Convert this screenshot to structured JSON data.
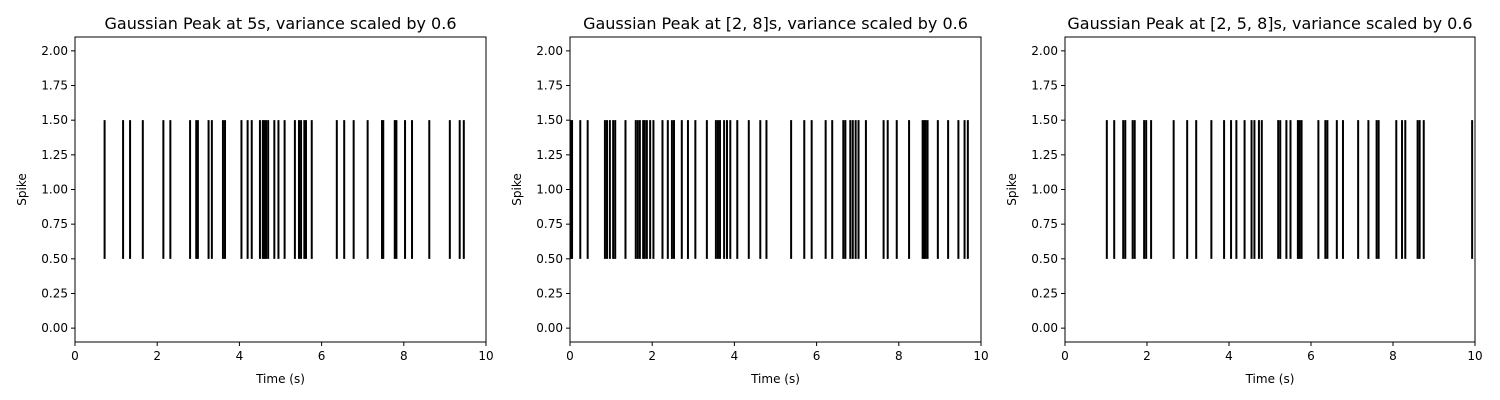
{
  "chart_data": [
    {
      "type": "eventplot",
      "title": "Gaussian Peak at 5s, variance scaled by 0.6",
      "xlabel": "Time (s)",
      "ylabel": "Spike",
      "xlim": [
        0,
        10
      ],
      "ylim": [
        -0.1,
        2.1
      ],
      "x_ticks": [
        "0",
        "2",
        "4",
        "6",
        "8",
        "10"
      ],
      "y_ticks": [
        "0.00",
        "0.25",
        "0.50",
        "0.75",
        "1.00",
        "1.25",
        "1.50",
        "1.75",
        "2.00"
      ],
      "line_range": [
        0.5,
        1.5
      ],
      "color": "#000000",
      "spike_times": [
        0.72,
        1.17,
        1.34,
        1.65,
        2.15,
        2.32,
        2.8,
        2.95,
        2.99,
        3.25,
        3.33,
        3.6,
        3.65,
        4.05,
        4.2,
        4.3,
        4.5,
        4.57,
        4.61,
        4.65,
        4.7,
        4.85,
        4.95,
        5.1,
        5.35,
        5.45,
        5.5,
        5.58,
        5.62,
        5.76,
        6.37,
        6.55,
        6.78,
        7.12,
        7.47,
        7.5,
        7.78,
        7.82,
        8.03,
        8.2,
        8.62,
        9.12,
        9.36,
        9.46
      ]
    },
    {
      "type": "eventplot",
      "title": "Gaussian Peak at [2, 8]s, variance scaled by 0.6",
      "xlabel": "Time (s)",
      "ylabel": "Spike",
      "xlim": [
        0,
        10
      ],
      "ylim": [
        -0.1,
        2.1
      ],
      "x_ticks": [
        "0",
        "2",
        "4",
        "6",
        "8",
        "10"
      ],
      "y_ticks": [
        "0.00",
        "0.25",
        "0.50",
        "0.75",
        "1.00",
        "1.25",
        "1.50",
        "1.75",
        "2.00"
      ],
      "line_range": [
        0.5,
        1.5
      ],
      "color": "#000000",
      "spike_times": [
        0.02,
        0.05,
        0.25,
        0.43,
        0.85,
        0.9,
        0.97,
        1.05,
        1.1,
        1.35,
        1.6,
        1.65,
        1.7,
        1.78,
        1.82,
        1.87,
        1.95,
        2.03,
        2.25,
        2.38,
        2.48,
        2.53,
        2.72,
        2.87,
        3.05,
        3.33,
        3.55,
        3.6,
        3.65,
        3.75,
        3.82,
        3.9,
        4.07,
        4.35,
        4.63,
        4.78,
        5.38,
        5.7,
        5.88,
        6.22,
        6.38,
        6.65,
        6.7,
        6.82,
        6.88,
        6.95,
        7.02,
        7.2,
        7.63,
        7.73,
        7.95,
        8.25,
        8.58,
        8.62,
        8.65,
        8.7,
        8.95,
        9.2,
        9.45,
        9.6,
        9.68
      ]
    },
    {
      "type": "eventplot",
      "title": "Gaussian Peak at [2, 5, 8]s, variance scaled by 0.6",
      "xlabel": "Time (s)",
      "ylabel": "Spike",
      "xlim": [
        0,
        10
      ],
      "ylim": [
        -0.1,
        2.1
      ],
      "x_ticks": [
        "0",
        "2",
        "4",
        "6",
        "8",
        "10"
      ],
      "y_ticks": [
        "0.00",
        "0.25",
        "0.50",
        "0.75",
        "1.00",
        "1.25",
        "1.50",
        "1.75",
        "2.00"
      ],
      "line_range": [
        0.5,
        1.5
      ],
      "color": "#000000",
      "spike_times": [
        1.02,
        1.2,
        1.42,
        1.47,
        1.65,
        1.7,
        1.93,
        1.98,
        2.1,
        2.65,
        2.98,
        3.2,
        3.57,
        3.88,
        4.05,
        4.18,
        4.38,
        4.55,
        4.62,
        4.73,
        4.8,
        5.2,
        5.25,
        5.4,
        5.5,
        5.68,
        5.72,
        5.77,
        6.18,
        6.35,
        6.4,
        6.63,
        6.78,
        7.15,
        7.4,
        7.6,
        7.65,
        8.08,
        8.22,
        8.3,
        8.6,
        8.65,
        8.75,
        9.93
      ]
    }
  ]
}
